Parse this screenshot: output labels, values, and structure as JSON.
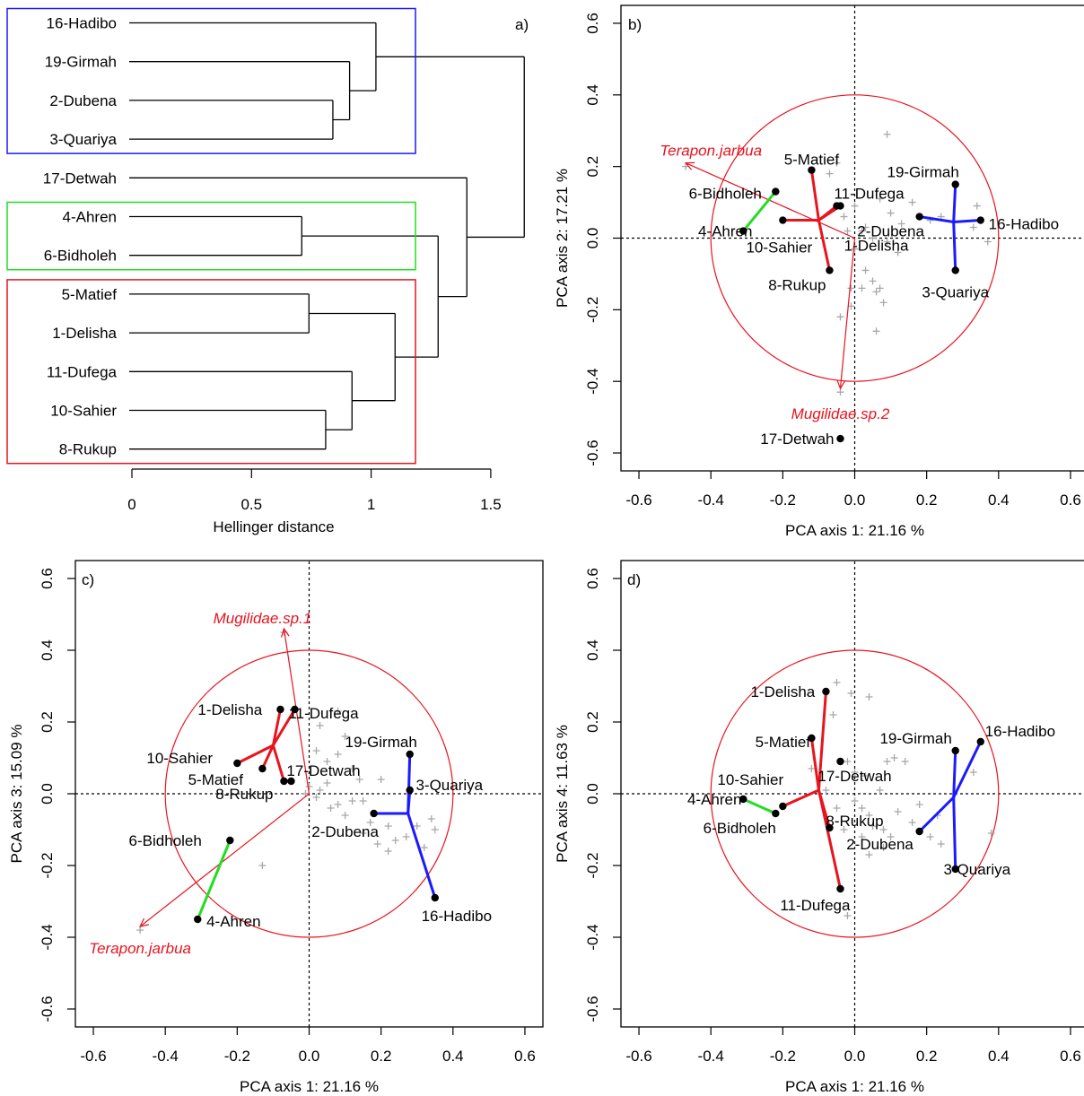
{
  "colors": {
    "red": "#e8141e",
    "blue": "#1a1aff",
    "green": "#22dd22",
    "grey": "#a8a8a8",
    "black": "#000000"
  },
  "chart_data": [
    {
      "id": "a",
      "type": "dendrogram",
      "panel_label": "a)",
      "xlabel": "Hellinger distance",
      "xticks": [
        0,
        0.5,
        1,
        1.5
      ],
      "xtick_labels": [
        "0",
        "0.5",
        "1",
        "1.5"
      ],
      "leaves": [
        "16-Hadibo",
        "19-Girmah",
        "2-Dubena",
        "3-Quariya",
        "17-Detwah",
        "4-Ahren",
        "6-Bidholeh",
        "5-Matief",
        "1-Delisha",
        "11-Dufega",
        "10-Sahier",
        "8-Rukup"
      ],
      "merges": [
        {
          "a": "L2",
          "b": "L3",
          "h": 0.84
        },
        {
          "a": "L1",
          "b": "N0",
          "h": 0.91
        },
        {
          "a": "L0",
          "b": "N1",
          "h": 1.02
        },
        {
          "a": "L5",
          "b": "L6",
          "h": 0.71
        },
        {
          "a": "L7",
          "b": "L8",
          "h": 0.74
        },
        {
          "a": "L10",
          "b": "L11",
          "h": 0.81
        },
        {
          "a": "L9",
          "b": "N5",
          "h": 0.92
        },
        {
          "a": "N4",
          "b": "N6",
          "h": 1.1
        },
        {
          "a": "N3",
          "b": "N7",
          "h": 1.28
        },
        {
          "a": "L4",
          "b": "N8",
          "h": 1.4
        },
        {
          "a": "N2",
          "b": "N9",
          "h": 1.64
        }
      ],
      "groups": [
        {
          "color": "blue",
          "from": 0,
          "to": 3
        },
        {
          "color": "green",
          "from": 5,
          "to": 6
        },
        {
          "color": "red",
          "from": 7,
          "to": 11
        }
      ]
    },
    {
      "id": "b",
      "type": "scatter",
      "panel_label": "b)",
      "xlabel": "PCA axis 1: 21.16 %",
      "ylabel": "PCA axis 2: 17.21 %",
      "xlim": [
        -0.65,
        0.65
      ],
      "ylim": [
        -0.65,
        0.65
      ],
      "xticks": [
        -0.6,
        -0.4,
        -0.2,
        0.0,
        0.2,
        0.4,
        0.6
      ],
      "yticks": [
        -0.6,
        -0.4,
        -0.2,
        0.0,
        0.2,
        0.4,
        0.6
      ],
      "circle_radius": 0.4,
      "sites": [
        {
          "label": "1-Delisha",
          "x": -0.05,
          "y": 0.09,
          "lx": 0.06,
          "ly": -0.02,
          "anchor": "middle"
        },
        {
          "label": "2-Dubena",
          "x": 0.18,
          "y": 0.06,
          "lx": 0.1,
          "ly": 0.02,
          "anchor": "middle"
        },
        {
          "label": "3-Quariya",
          "x": 0.28,
          "y": -0.09,
          "lx": 0.28,
          "ly": -0.15,
          "anchor": "middle"
        },
        {
          "label": "4-Ahren",
          "x": -0.31,
          "y": 0.02,
          "lx": -0.36,
          "ly": 0.02,
          "anchor": "middle"
        },
        {
          "label": "5-Matief",
          "x": -0.12,
          "y": 0.19,
          "lx": -0.12,
          "ly": 0.22,
          "anchor": "middle"
        },
        {
          "label": "6-Bidholeh",
          "x": -0.22,
          "y": 0.13,
          "lx": -0.36,
          "ly": 0.125,
          "anchor": "middle"
        },
        {
          "label": "8-Rukup",
          "x": -0.07,
          "y": -0.09,
          "lx": -0.16,
          "ly": -0.13,
          "anchor": "middle"
        },
        {
          "label": "10-Sahier",
          "x": -0.2,
          "y": 0.05,
          "lx": -0.21,
          "ly": -0.025,
          "anchor": "middle"
        },
        {
          "label": "11-Dufega",
          "x": -0.04,
          "y": 0.09,
          "lx": 0.04,
          "ly": 0.125,
          "anchor": "middle"
        },
        {
          "label": "16-Hadibo",
          "x": 0.35,
          "y": 0.05,
          "lx": 0.47,
          "ly": 0.04,
          "anchor": "middle"
        },
        {
          "label": "17-Detwah",
          "x": -0.04,
          "y": -0.56,
          "lx": -0.16,
          "ly": -0.56,
          "anchor": "middle"
        },
        {
          "label": "19-Girmah",
          "x": 0.28,
          "y": 0.15,
          "lx": 0.19,
          "ly": 0.185,
          "anchor": "middle"
        }
      ],
      "spider": [
        {
          "color": "red",
          "center": [
            -0.1,
            0.05
          ],
          "members": [
            "1-Delisha",
            "5-Matief",
            "8-Rukup",
            "10-Sahier",
            "11-Dufega"
          ]
        },
        {
          "color": "blue",
          "center": [
            0.275,
            0.045
          ],
          "members": [
            "2-Dubena",
            "3-Quariya",
            "16-Hadibo",
            "19-Girmah"
          ]
        },
        {
          "color": "green",
          "center": [
            -0.265,
            0.075
          ],
          "members": [
            "4-Ahren",
            "6-Bidholeh"
          ]
        }
      ],
      "species_vectors": [
        {
          "label": "Terapon.jarbua",
          "x": -0.47,
          "y": 0.21,
          "lx": -0.4,
          "ly": 0.245
        },
        {
          "label": "Mugilidae.sp.2",
          "x": -0.04,
          "y": -0.42,
          "lx": -0.04,
          "ly": -0.49
        }
      ],
      "species_points": [
        [
          -0.47,
          0.2
        ],
        [
          0.09,
          0.29
        ],
        [
          -0.05,
          0.21
        ],
        [
          -0.07,
          0.18
        ],
        [
          -0.03,
          0.06
        ],
        [
          0.0,
          0.09
        ],
        [
          0.03,
          0.03
        ],
        [
          0.07,
          0.11
        ],
        [
          0.1,
          0.07
        ],
        [
          0.13,
          0.04
        ],
        [
          0.16,
          0.1
        ],
        [
          0.03,
          -0.09
        ],
        [
          0.05,
          -0.12
        ],
        [
          0.08,
          -0.18
        ],
        [
          -0.01,
          -0.14
        ],
        [
          0.02,
          -0.14
        ],
        [
          -0.01,
          -0.19
        ],
        [
          0.06,
          -0.15
        ],
        [
          0.07,
          -0.14
        ],
        [
          0.06,
          -0.26
        ],
        [
          -0.04,
          -0.22
        ],
        [
          0.09,
          -0.01
        ],
        [
          0.12,
          -0.04
        ],
        [
          0.05,
          0.0
        ],
        [
          -0.02,
          0.02
        ],
        [
          0.21,
          0.05
        ],
        [
          0.24,
          0.06
        ],
        [
          0.34,
          0.09
        ],
        [
          0.33,
          0.03
        ],
        [
          0.37,
          -0.01
        ],
        [
          0.0,
          -0.03
        ],
        [
          0.02,
          0.02
        ],
        [
          -0.04,
          -0.43
        ]
      ]
    },
    {
      "id": "c",
      "type": "scatter",
      "panel_label": "c)",
      "xlabel": "PCA axis 1: 21.16 %",
      "ylabel": "PCA axis 3: 15.09 %",
      "xlim": [
        -0.65,
        0.65
      ],
      "ylim": [
        -0.65,
        0.65
      ],
      "xticks": [
        -0.6,
        -0.4,
        -0.2,
        0.0,
        0.2,
        0.4,
        0.6
      ],
      "yticks": [
        -0.6,
        -0.4,
        -0.2,
        0.0,
        0.2,
        0.4,
        0.6
      ],
      "circle_radius": 0.4,
      "sites": [
        {
          "label": "1-Delisha",
          "x": -0.08,
          "y": 0.235,
          "lx": -0.22,
          "ly": 0.235,
          "anchor": "middle"
        },
        {
          "label": "2-Dubena",
          "x": 0.18,
          "y": -0.055,
          "lx": 0.1,
          "ly": -0.105,
          "anchor": "middle"
        },
        {
          "label": "3-Quariya",
          "x": 0.28,
          "y": 0.01,
          "lx": 0.39,
          "ly": 0.025,
          "anchor": "middle"
        },
        {
          "label": "4-Ahren",
          "x": -0.31,
          "y": -0.35,
          "lx": -0.21,
          "ly": -0.355,
          "anchor": "middle"
        },
        {
          "label": "5-Matief",
          "x": -0.13,
          "y": 0.07,
          "lx": -0.26,
          "ly": 0.04,
          "anchor": "middle"
        },
        {
          "label": "6-Bidholeh",
          "x": -0.22,
          "y": -0.13,
          "lx": -0.4,
          "ly": -0.13,
          "anchor": "middle"
        },
        {
          "label": "8-Rukup",
          "x": -0.07,
          "y": 0.035,
          "lx": -0.18,
          "ly": 0.0,
          "anchor": "middle"
        },
        {
          "label": "10-Sahier",
          "x": -0.2,
          "y": 0.085,
          "lx": -0.36,
          "ly": 0.1,
          "anchor": "middle"
        },
        {
          "label": "11-Dufega",
          "x": -0.04,
          "y": 0.235,
          "lx": 0.04,
          "ly": 0.225,
          "anchor": "middle"
        },
        {
          "label": "16-Hadibo",
          "x": 0.35,
          "y": -0.29,
          "lx": 0.41,
          "ly": -0.34,
          "anchor": "middle"
        },
        {
          "label": "17-Detwah",
          "x": -0.05,
          "y": 0.035,
          "lx": 0.04,
          "ly": 0.065,
          "anchor": "middle"
        },
        {
          "label": "19-Girmah",
          "x": 0.28,
          "y": 0.11,
          "lx": 0.2,
          "ly": 0.145,
          "anchor": "middle"
        }
      ],
      "spider": [
        {
          "color": "red",
          "center": [
            -0.1,
            0.135
          ],
          "members": [
            "1-Delisha",
            "5-Matief",
            "8-Rukup",
            "10-Sahier",
            "11-Dufega"
          ]
        },
        {
          "color": "blue",
          "center": [
            0.275,
            -0.055
          ],
          "members": [
            "2-Dubena",
            "3-Quariya",
            "16-Hadibo",
            "19-Girmah"
          ]
        },
        {
          "color": "green",
          "center": [
            -0.265,
            -0.24
          ],
          "members": [
            "4-Ahren",
            "6-Bidholeh"
          ]
        }
      ],
      "species_vectors": [
        {
          "label": "Terapon.jarbua",
          "x": -0.47,
          "y": -0.37,
          "lx": -0.47,
          "ly": -0.43
        },
        {
          "label": "Mugilidae.sp.1",
          "x": -0.07,
          "y": 0.46,
          "lx": -0.13,
          "ly": 0.49
        }
      ],
      "species_points": [
        [
          -0.47,
          -0.38
        ],
        [
          -0.07,
          0.45
        ],
        [
          0.08,
          0.23
        ],
        [
          0.03,
          0.19
        ],
        [
          0.02,
          0.12
        ],
        [
          0.05,
          0.09
        ],
        [
          0.08,
          0.11
        ],
        [
          0.1,
          0.16
        ],
        [
          0.12,
          0.07
        ],
        [
          0.0,
          0.02
        ],
        [
          0.03,
          0.01
        ],
        [
          0.05,
          0.03
        ],
        [
          0.02,
          -0.01
        ],
        [
          -0.01,
          0.0
        ],
        [
          0.08,
          -0.03
        ],
        [
          0.12,
          -0.02
        ],
        [
          0.15,
          -0.02
        ],
        [
          0.2,
          0.04
        ],
        [
          0.17,
          -0.08
        ],
        [
          0.15,
          -0.11
        ],
        [
          0.19,
          -0.14
        ],
        [
          0.24,
          -0.13
        ],
        [
          0.22,
          -0.16
        ],
        [
          0.27,
          -0.12
        ],
        [
          0.35,
          -0.1
        ],
        [
          0.34,
          -0.07
        ],
        [
          0.32,
          -0.15
        ],
        [
          0.3,
          -0.09
        ],
        [
          -0.13,
          -0.2
        ],
        [
          0.06,
          -0.04
        ],
        [
          0.1,
          -0.06
        ],
        [
          0.22,
          -0.09
        ],
        [
          0.14,
          0.04
        ]
      ]
    },
    {
      "id": "d",
      "type": "scatter",
      "panel_label": "d)",
      "xlabel": "PCA axis 1: 21.16 %",
      "ylabel": "PCA axis 4: 11.63 %",
      "xlim": [
        -0.65,
        0.65
      ],
      "ylim": [
        -0.65,
        0.65
      ],
      "xticks": [
        -0.6,
        -0.4,
        -0.2,
        0.0,
        0.2,
        0.4,
        0.6
      ],
      "yticks": [
        -0.6,
        -0.4,
        -0.2,
        0.0,
        0.2,
        0.4,
        0.6
      ],
      "circle_radius": 0.4,
      "sites": [
        {
          "label": "1-Delisha",
          "x": -0.08,
          "y": 0.285,
          "lx": -0.2,
          "ly": 0.285,
          "anchor": "middle"
        },
        {
          "label": "2-Dubena",
          "x": 0.18,
          "y": -0.105,
          "lx": 0.07,
          "ly": -0.14,
          "anchor": "middle"
        },
        {
          "label": "3-Quariya",
          "x": 0.28,
          "y": -0.21,
          "lx": 0.34,
          "ly": -0.21,
          "anchor": "middle"
        },
        {
          "label": "4-Ahren",
          "x": -0.31,
          "y": -0.015,
          "lx": -0.39,
          "ly": -0.015,
          "anchor": "middle"
        },
        {
          "label": "5-Matief",
          "x": -0.12,
          "y": 0.155,
          "lx": -0.2,
          "ly": 0.145,
          "anchor": "middle"
        },
        {
          "label": "6-Bidholeh",
          "x": -0.22,
          "y": -0.055,
          "lx": -0.32,
          "ly": -0.095,
          "anchor": "middle"
        },
        {
          "label": "8-Rukup",
          "x": -0.07,
          "y": -0.095,
          "lx": 0.0,
          "ly": -0.075,
          "anchor": "middle"
        },
        {
          "label": "10-Sahier",
          "x": -0.2,
          "y": -0.035,
          "lx": -0.29,
          "ly": 0.04,
          "anchor": "middle"
        },
        {
          "label": "11-Dufega",
          "x": -0.04,
          "y": -0.265,
          "lx": -0.11,
          "ly": -0.31,
          "anchor": "middle"
        },
        {
          "label": "16-Hadibo",
          "x": 0.35,
          "y": 0.145,
          "lx": 0.46,
          "ly": 0.175,
          "anchor": "middle"
        },
        {
          "label": "17-Detwah",
          "x": -0.04,
          "y": 0.09,
          "lx": 0.0,
          "ly": 0.05,
          "anchor": "middle"
        },
        {
          "label": "19-Girmah",
          "x": 0.28,
          "y": 0.12,
          "lx": 0.17,
          "ly": 0.155,
          "anchor": "middle"
        }
      ],
      "spider": [
        {
          "color": "red",
          "center": [
            -0.1,
            0.01
          ],
          "members": [
            "1-Delisha",
            "5-Matief",
            "8-Rukup",
            "10-Sahier",
            "11-Dufega"
          ]
        },
        {
          "color": "blue",
          "center": [
            0.275,
            -0.01
          ],
          "members": [
            "2-Dubena",
            "3-Quariya",
            "16-Hadibo",
            "19-Girmah"
          ]
        },
        {
          "color": "green",
          "center": [
            -0.265,
            -0.035
          ],
          "members": [
            "4-Ahren",
            "6-Bidholeh"
          ]
        }
      ],
      "species_vectors": [],
      "species_points": [
        [
          -0.05,
          0.31
        ],
        [
          -0.01,
          0.28
        ],
        [
          0.04,
          0.27
        ],
        [
          -0.06,
          0.22
        ],
        [
          -0.02,
          0.09
        ],
        [
          0.0,
          0.06
        ],
        [
          0.03,
          0.05
        ],
        [
          0.09,
          0.09
        ],
        [
          0.11,
          0.1
        ],
        [
          0.14,
          0.09
        ],
        [
          0.0,
          -0.02
        ],
        [
          0.02,
          -0.04
        ],
        [
          0.04,
          -0.06
        ],
        [
          0.05,
          -0.09
        ],
        [
          0.08,
          -0.1
        ],
        [
          0.1,
          -0.12
        ],
        [
          0.02,
          -0.12
        ],
        [
          0.04,
          -0.17
        ],
        [
          0.08,
          -0.15
        ],
        [
          -0.03,
          -0.1
        ],
        [
          -0.05,
          -0.04
        ],
        [
          0.12,
          -0.05
        ],
        [
          0.16,
          -0.08
        ],
        [
          0.21,
          -0.12
        ],
        [
          0.23,
          -0.06
        ],
        [
          0.24,
          -0.14
        ],
        [
          0.33,
          0.06
        ],
        [
          0.38,
          -0.11
        ],
        [
          -0.12,
          0.07
        ],
        [
          -0.08,
          0.01
        ],
        [
          -0.02,
          -0.34
        ],
        [
          0.07,
          0.01
        ],
        [
          0.18,
          -0.03
        ]
      ]
    }
  ]
}
